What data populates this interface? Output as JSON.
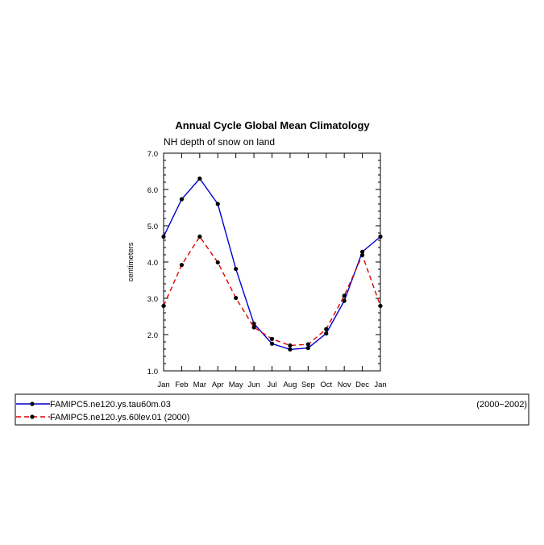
{
  "chart_data": {
    "type": "line",
    "title": "Annual Cycle Global Mean Climatology",
    "subtitle": "NH depth of snow on land",
    "ylabel": "centimeters",
    "xlabel": "",
    "categories": [
      "Jan",
      "Feb",
      "Mar",
      "Apr",
      "May",
      "Jun",
      "Jul",
      "Aug",
      "Sep",
      "Oct",
      "Nov",
      "Dec",
      "Jan"
    ],
    "ylim": [
      1.0,
      7.0
    ],
    "yticks": [
      "1.0",
      "2.0",
      "3.0",
      "4.0",
      "5.0",
      "6.0",
      "7.0"
    ],
    "grid": false,
    "series": [
      {
        "name": "FAMIPC5.ne120.ys.tau60m.03",
        "period": "(2000−2002)",
        "color": "#0000cc",
        "style": "solid",
        "values": [
          4.7,
          5.73,
          6.3,
          5.6,
          3.81,
          2.3,
          1.75,
          1.59,
          1.63,
          2.03,
          2.93,
          4.28,
          4.7
        ]
      },
      {
        "name": "FAMIPC5.ne120.ys.60lev.01 (2000)",
        "period": "",
        "color": "#dd0000",
        "style": "dashed",
        "values": [
          2.79,
          3.92,
          4.7,
          3.99,
          3.01,
          2.2,
          1.88,
          1.7,
          1.73,
          2.15,
          3.07,
          4.19,
          2.79
        ]
      }
    ]
  }
}
